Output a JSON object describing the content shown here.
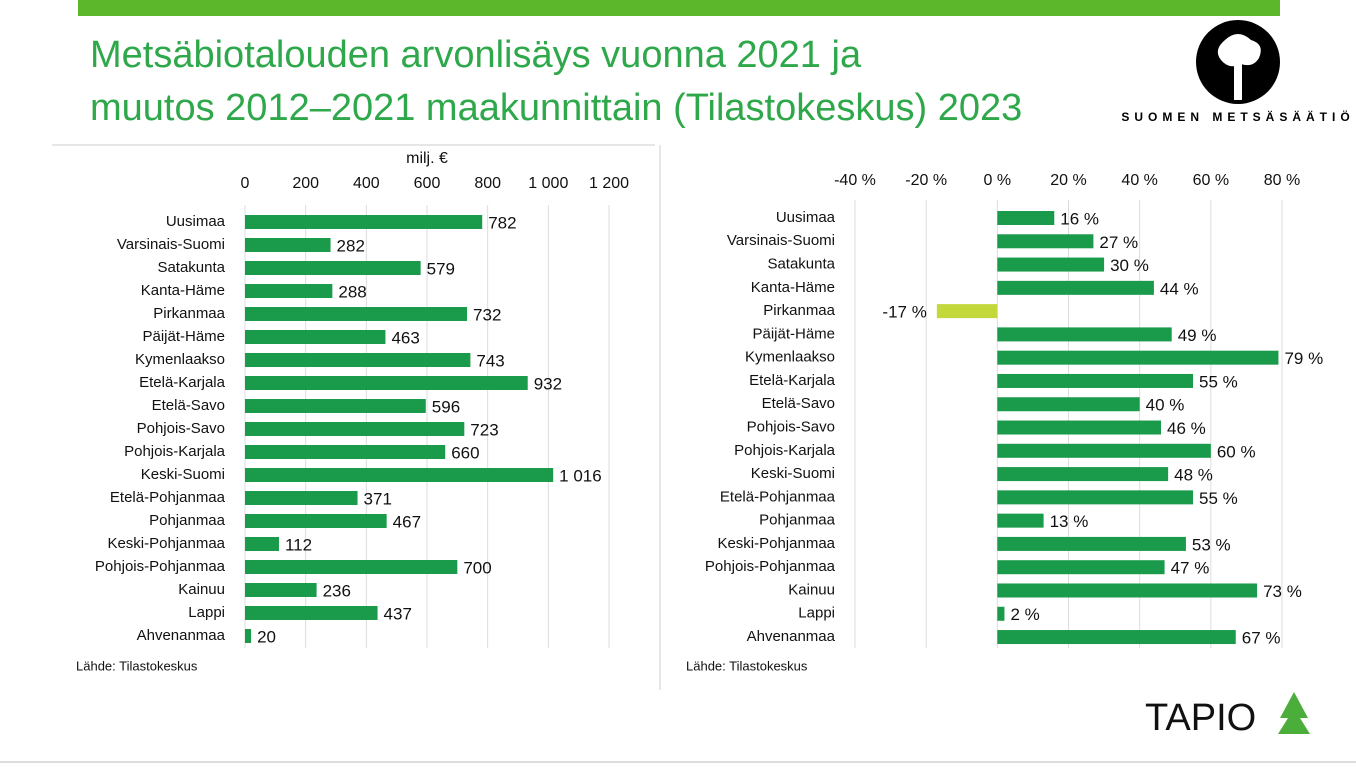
{
  "header": {
    "title_lines": [
      "Metsäbiotalouden arvonlisäys vuonna 2021 ja",
      "muutos 2012–2021 maakunnittain (Tilastokeskus) 2023"
    ],
    "logo_text": "SUOMEN METSÄSÄÄTIÖ",
    "brand": "TAPIO"
  },
  "chart_data": [
    {
      "type": "hbar",
      "xlabel": "milj. €",
      "source": "Lähde: Tilastokeskus",
      "color": "#1a9a4b",
      "grid": true,
      "categories": [
        "Uusimaa",
        "Varsinais-Suomi",
        "Satakunta",
        "Kanta-Häme",
        "Pirkanmaa",
        "Päijät-Häme",
        "Kymenlaakso",
        "Etelä-Karjala",
        "Etelä-Savo",
        "Pohjois-Savo",
        "Pohjois-Karjala",
        "Keski-Suomi",
        "Etelä-Pohjanmaa",
        "Pohjanmaa",
        "Keski-Pohjanmaa",
        "Pohjois-Pohjanmaa",
        "Kainuu",
        "Lappi",
        "Ahvenanmaa"
      ],
      "values": [
        782,
        282,
        579,
        288,
        732,
        463,
        743,
        932,
        596,
        723,
        660,
        1016,
        371,
        467,
        112,
        700,
        236,
        437,
        20
      ],
      "value_labels": [
        "782",
        "282",
        "579",
        "288",
        "732",
        "463",
        "743",
        "932",
        "596",
        "723",
        "660",
        "1 016",
        "371",
        "467",
        "112",
        "700",
        "236",
        "437",
        "20"
      ],
      "xlim": [
        0,
        1200
      ],
      "xticks": [
        0,
        200,
        400,
        600,
        800,
        {
          "value": 1000,
          "label": "1 000"
        },
        {
          "value": 1200,
          "label": "1 200"
        }
      ]
    },
    {
      "type": "hbar",
      "source": "Lähde: Tilastokeskus",
      "color": "#1a9a4b",
      "negative_color": "#c3d83a",
      "grid": true,
      "categories": [
        "Uusimaa",
        "Varsinais-Suomi",
        "Satakunta",
        "Kanta-Häme",
        "Pirkanmaa",
        "Päijät-Häme",
        "Kymenlaakso",
        "Etelä-Karjala",
        "Etelä-Savo",
        "Pohjois-Savo",
        "Pohjois-Karjala",
        "Keski-Suomi",
        "Etelä-Pohjanmaa",
        "Pohjanmaa",
        "Keski-Pohjanmaa",
        "Pohjois-Pohjanmaa",
        "Kainuu",
        "Lappi",
        "Ahvenanmaa"
      ],
      "values": [
        16,
        27,
        30,
        44,
        -17,
        49,
        79,
        55,
        40,
        46,
        60,
        48,
        55,
        13,
        53,
        47,
        73,
        2,
        67
      ],
      "value_labels": [
        "16 %",
        "27 %",
        "30 %",
        "44 %",
        "-17 %",
        "49 %",
        "79 %",
        "55 %",
        "40 %",
        "46 %",
        "60 %",
        "48 %",
        "55 %",
        "13 %",
        "53 %",
        "47 %",
        "73 %",
        "2 %",
        "67 %"
      ],
      "xlim": [
        -40,
        80
      ],
      "xticks": [
        {
          "value": -40,
          "label": "-40 %"
        },
        {
          "value": -20,
          "label": "-20 %"
        },
        {
          "value": 0,
          "label": "0 %"
        },
        {
          "value": 20,
          "label": "20 %"
        },
        {
          "value": 40,
          "label": "40 %"
        },
        {
          "value": 60,
          "label": "60 %"
        },
        {
          "value": 80,
          "label": "80 %"
        }
      ]
    }
  ]
}
